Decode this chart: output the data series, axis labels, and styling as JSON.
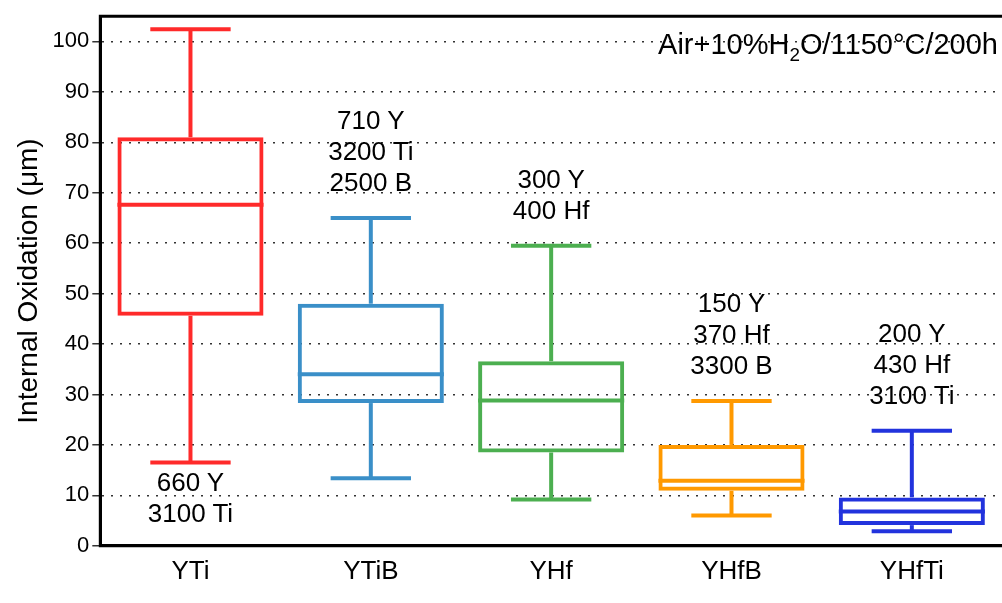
{
  "chart_data": {
    "type": "box",
    "title": "Air+10%H$_{2}$O/1150°C/200h",
    "ylabel": "Internal Oxidation (μm)",
    "categories": [
      "YTi",
      "YTiB",
      "YHf",
      "YHfB",
      "YHfTi"
    ],
    "colors": [
      "#ff2a2a",
      "#3a8fc8",
      "#4caf50",
      "#ff9900",
      "#2233dd"
    ],
    "boxes": [
      {
        "low": 16.5,
        "q1": 45.6,
        "median": 67.6,
        "q3": 81,
        "high": 102.4
      },
      {
        "low": 13.4,
        "q1": 28.3,
        "median": 34,
        "q3": 48,
        "high": 65
      },
      {
        "low": 9.2,
        "q1": 18.5,
        "median": 28.8,
        "q3": 36.6,
        "high": 59.5
      },
      {
        "low": 6,
        "q1": 10.9,
        "median": 12.9,
        "q3": 20,
        "high": 28.7
      },
      {
        "low": 2.9,
        "q1": 4.1,
        "median": 6.8,
        "q3": 9.6,
        "high": 22.8
      }
    ],
    "ylim": [
      0,
      105
    ],
    "yticks": [
      0,
      10,
      20,
      30,
      40,
      50,
      60,
      70,
      80,
      90,
      100
    ],
    "grid": "y",
    "annotations": [
      "660 Y\n3100 Ti",
      "710 Y\n3200 Ti\n2500 B",
      "300 Y\n400 Hf",
      "150 Y\n370 Hf\n3300 B",
      "200 Y\n430 Hf\n3100 Ti"
    ]
  }
}
